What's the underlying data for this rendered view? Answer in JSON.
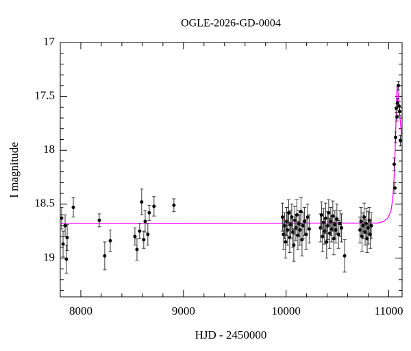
{
  "chart_data": {
    "type": "scatter",
    "title": "OGLE-2026-GD-0004",
    "x_label": "HJD - 2450000",
    "y_label": "I magnitude",
    "xlim": [
      7800,
      11130
    ],
    "ylim": [
      17,
      19.36
    ],
    "y_inverted": true,
    "xticks": [
      8000,
      9000,
      10000,
      11000
    ],
    "xticks_minor": [
      7800,
      8200,
      8400,
      8600,
      8800,
      9200,
      9400,
      9600,
      9800,
      10200,
      10400,
      10600,
      10800
    ],
    "yticks": [
      17,
      17.5,
      18,
      18.5,
      19
    ],
    "yticks_minor": [
      17.1,
      17.2,
      17.3,
      17.4,
      17.6,
      17.7,
      17.8,
      17.9,
      18.1,
      18.2,
      18.3,
      18.4,
      18.6,
      18.7,
      18.8,
      18.9,
      19.1,
      19.2,
      19.3
    ],
    "points": {
      "color": "#000000",
      "x": [
        7813,
        7827,
        7847,
        7860,
        7867,
        7927,
        8180,
        8233,
        8287,
        8527,
        8547,
        8573,
        8593,
        8613,
        8627,
        8653,
        8667,
        8713,
        8907,
        9965,
        9975,
        9985,
        9995,
        10005,
        10015,
        10025,
        10035,
        10045,
        10055,
        10065,
        10075,
        10085,
        10095,
        10105,
        10115,
        10125,
        10135,
        10145,
        10155,
        10165,
        10180,
        10195,
        10210,
        10225,
        10335,
        10345,
        10355,
        10365,
        10375,
        10385,
        10395,
        10405,
        10415,
        10425,
        10435,
        10445,
        10455,
        10465,
        10475,
        10485,
        10495,
        10510,
        10525,
        10540,
        10570,
        10720,
        10730,
        10740,
        10750,
        10760,
        10770,
        10780,
        10790,
        10800,
        10810,
        10820,
        10830,
        11053,
        11060,
        11067,
        11073,
        11080,
        11087,
        11093,
        11100,
        11107,
        11113
      ],
      "values": [
        18.63,
        18.87,
        18.7,
        19.01,
        18.81,
        18.53,
        18.65,
        18.98,
        18.84,
        18.8,
        18.92,
        18.75,
        18.48,
        18.83,
        18.66,
        18.78,
        18.58,
        18.52,
        18.51,
        18.62,
        18.78,
        18.7,
        18.85,
        18.66,
        18.74,
        18.58,
        18.81,
        18.69,
        18.62,
        18.76,
        18.88,
        18.65,
        18.72,
        18.6,
        18.79,
        18.68,
        18.74,
        18.57,
        18.83,
        18.7,
        18.66,
        18.78,
        18.62,
        18.73,
        18.72,
        18.6,
        18.8,
        18.67,
        18.75,
        18.63,
        18.85,
        18.7,
        18.58,
        18.77,
        18.66,
        18.73,
        18.61,
        18.82,
        18.69,
        18.74,
        18.64,
        18.78,
        18.68,
        18.72,
        18.98,
        18.74,
        18.66,
        18.8,
        18.7,
        18.62,
        18.76,
        18.68,
        18.82,
        18.72,
        18.65,
        18.78,
        18.7,
        18.13,
        18.35,
        17.88,
        17.61,
        17.69,
        17.56,
        17.4,
        17.59,
        17.64,
        17.91
      ],
      "errors": [
        0.1,
        0.12,
        0.1,
        0.13,
        0.12,
        0.09,
        0.06,
        0.13,
        0.1,
        0.08,
        0.1,
        0.07,
        0.12,
        0.08,
        0.1,
        0.1,
        0.07,
        0.09,
        0.06,
        0.13,
        0.14,
        0.12,
        0.15,
        0.13,
        0.14,
        0.12,
        0.14,
        0.13,
        0.12,
        0.14,
        0.15,
        0.13,
        0.12,
        0.14,
        0.13,
        0.12,
        0.14,
        0.13,
        0.15,
        0.12,
        0.13,
        0.14,
        0.12,
        0.13,
        0.13,
        0.12,
        0.14,
        0.13,
        0.12,
        0.14,
        0.15,
        0.13,
        0.12,
        0.14,
        0.13,
        0.12,
        0.14,
        0.15,
        0.13,
        0.12,
        0.14,
        0.13,
        0.12,
        0.13,
        0.15,
        0.12,
        0.13,
        0.14,
        0.12,
        0.13,
        0.12,
        0.14,
        0.13,
        0.15,
        0.12,
        0.13,
        0.12,
        0.06,
        0.05,
        0.05,
        0.04,
        0.04,
        0.04,
        0.04,
        0.04,
        0.04,
        0.05
      ]
    },
    "model": {
      "color": "#ff00ff",
      "x": [
        7800,
        10900,
        10950,
        10990,
        11020,
        11040,
        11055,
        11065,
        11075,
        11082,
        11090,
        11100,
        11110,
        11127
      ],
      "values": [
        18.68,
        18.675,
        18.66,
        18.63,
        18.57,
        18.45,
        18.2,
        17.9,
        17.55,
        17.4,
        17.45,
        17.6,
        17.7,
        17.9
      ]
    }
  }
}
